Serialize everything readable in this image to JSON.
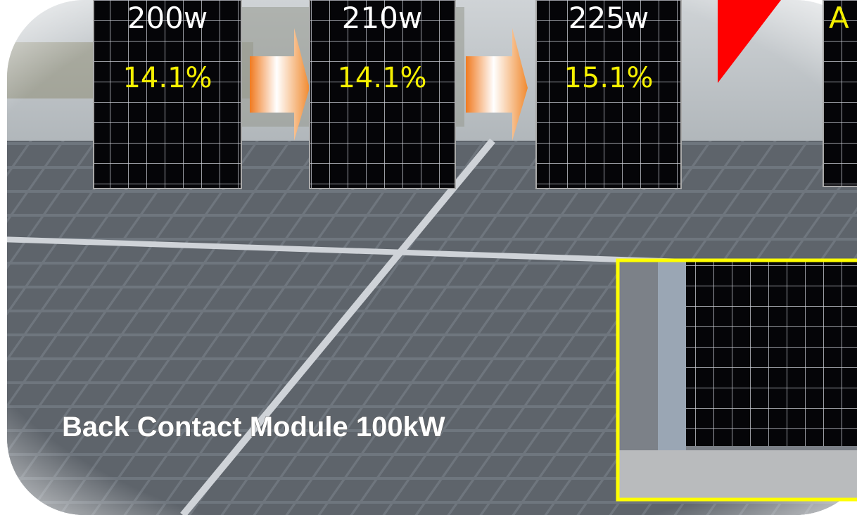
{
  "panels": [
    {
      "power": "200w",
      "efficiency": "14.1%"
    },
    {
      "power": "210w",
      "efficiency": "14.1%"
    },
    {
      "power": "225w",
      "efficiency": "15.1%"
    }
  ],
  "partial_label": "A",
  "caption": "Back Contact Module 100kW"
}
